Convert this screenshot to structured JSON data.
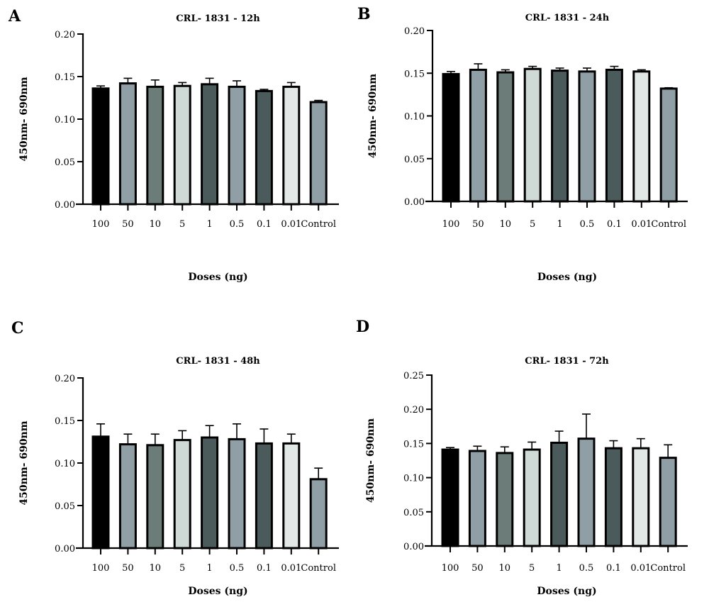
{
  "figure": {
    "categories_label_note": "Doses (ng)"
  },
  "chart_data": [
    {
      "panel": "A",
      "type": "bar",
      "title": "CRL- 1831 - 12h",
      "xlabel": "Doses (ng)",
      "ylabel": "450nm- 690nm",
      "categories": [
        "100",
        "50",
        "10",
        "5",
        "1",
        "0.5",
        "0.1",
        "0.01",
        "Control"
      ],
      "values": [
        0.136,
        0.142,
        0.138,
        0.139,
        0.141,
        0.138,
        0.133,
        0.138,
        0.12
      ],
      "error_upper": [
        0.139,
        0.148,
        0.146,
        0.143,
        0.148,
        0.145,
        0.135,
        0.143,
        0.122
      ],
      "yticks": [
        "0.00",
        "0.05",
        "0.10",
        "0.15",
        "0.20"
      ],
      "ylim": [
        0,
        0.2
      ],
      "grid": false,
      "bar_colors": [
        "#000000",
        "#909fa6",
        "#6c7d79",
        "#cfdad7",
        "#4b5a5a",
        "#909fa6",
        "#4b5a5a",
        "#e2e8e6",
        "#909fa6"
      ]
    },
    {
      "panel": "B",
      "type": "bar",
      "title": "CRL- 1831 - 24h",
      "xlabel": "Doses (ng)",
      "ylabel": "450nm- 690nm",
      "categories": [
        "100",
        "50",
        "10",
        "5",
        "1",
        "0.5",
        "0.1",
        "0.01",
        "Control"
      ],
      "values": [
        0.149,
        0.154,
        0.151,
        0.155,
        0.153,
        0.152,
        0.154,
        0.152,
        0.132
      ],
      "error_upper": [
        0.152,
        0.161,
        0.154,
        0.158,
        0.156,
        0.156,
        0.158,
        0.154,
        0.133
      ],
      "yticks": [
        "0.00",
        "0.05",
        "0.10",
        "0.15",
        "0.20"
      ],
      "ylim": [
        0,
        0.2
      ],
      "grid": false,
      "bar_colors": [
        "#000000",
        "#909fa6",
        "#6c7d79",
        "#cfdad7",
        "#4b5a5a",
        "#909fa6",
        "#4b5a5a",
        "#e2e8e6",
        "#909fa6"
      ]
    },
    {
      "panel": "C",
      "type": "bar",
      "title": "CRL- 1831 - 48h",
      "xlabel": "Doses (ng)",
      "ylabel": "450nm- 690nm",
      "categories": [
        "100",
        "50",
        "10",
        "5",
        "1",
        "0.5",
        "0.1",
        "0.01",
        "Control"
      ],
      "values": [
        0.131,
        0.122,
        0.121,
        0.127,
        0.13,
        0.128,
        0.123,
        0.123,
        0.081
      ],
      "error_upper": [
        0.146,
        0.134,
        0.134,
        0.138,
        0.144,
        0.146,
        0.14,
        0.134,
        0.094
      ],
      "yticks": [
        "0.00",
        "0.05",
        "0.10",
        "0.15",
        "0.20"
      ],
      "ylim": [
        0,
        0.2
      ],
      "grid": false,
      "bar_colors": [
        "#000000",
        "#909fa6",
        "#6c7d79",
        "#cfdad7",
        "#4b5a5a",
        "#909fa6",
        "#4b5a5a",
        "#e2e8e6",
        "#909fa6"
      ]
    },
    {
      "panel": "D",
      "type": "bar",
      "title": "CRL- 1831 - 72h",
      "xlabel": "Doses (ng)",
      "ylabel": "450nm- 690nm",
      "categories": [
        "100",
        "50",
        "10",
        "5",
        "1",
        "0.5",
        "0.1",
        "0.01",
        "Control"
      ],
      "values": [
        0.141,
        0.139,
        0.136,
        0.141,
        0.151,
        0.157,
        0.143,
        0.143,
        0.129
      ],
      "error_upper": [
        0.144,
        0.146,
        0.145,
        0.152,
        0.168,
        0.193,
        0.154,
        0.157,
        0.148
      ],
      "yticks": [
        "0.00",
        "0.05",
        "0.10",
        "0.15",
        "0.20",
        "0.25"
      ],
      "ylim": [
        0,
        0.25
      ],
      "grid": false,
      "bar_colors": [
        "#000000",
        "#909fa6",
        "#6c7d79",
        "#cfdad7",
        "#4b5a5a",
        "#909fa6",
        "#4b5a5a",
        "#e2e8e6",
        "#909fa6"
      ]
    }
  ]
}
